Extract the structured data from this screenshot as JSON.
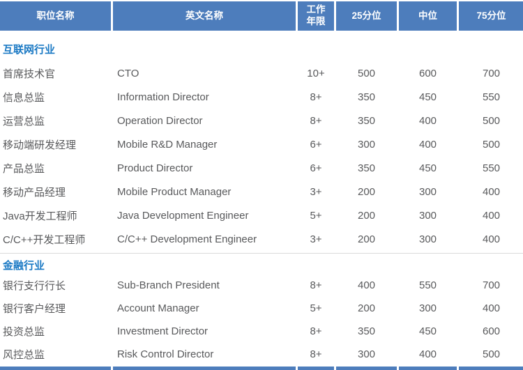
{
  "colors": {
    "header_bg": "#4d7dbc",
    "header_text": "#ffffff",
    "section_title_text": "#1a79c4",
    "body_text": "#58595b",
    "divider": "#d9d9d9"
  },
  "table": {
    "columns": [
      {
        "label": "职位名称"
      },
      {
        "label": "英文名称"
      },
      {
        "label": "工作\n年限"
      },
      {
        "label": "25分位"
      },
      {
        "label": "中位"
      },
      {
        "label": "75分位"
      }
    ],
    "sections": [
      {
        "title": "互联网行业",
        "rows": [
          [
            "首席技术官",
            "CTO",
            "10+",
            "500",
            "600",
            "700"
          ],
          [
            "信息总监",
            "Information Director",
            "8+",
            "350",
            "450",
            "550"
          ],
          [
            "运营总监",
            "Operation Director",
            "8+",
            "350",
            "400",
            "500"
          ],
          [
            "移动端研发经理",
            "Mobile R&D Manager",
            "6+",
            "300",
            "400",
            "500"
          ],
          [
            "产品总监",
            "Product Director",
            "6+",
            "350",
            "450",
            "550"
          ],
          [
            "移动产品经理",
            "Mobile Product Manager",
            "3+",
            "200",
            "300",
            "400"
          ],
          [
            "Java开发工程师",
            "Java Development Engineer",
            "5+",
            "200",
            "300",
            "400"
          ],
          [
            "C/C++开发工程师",
            "C/C++ Development Engineer",
            "3+",
            "200",
            "300",
            "400"
          ]
        ]
      },
      {
        "title": "金融行业",
        "rows": [
          [
            "银行支行行长",
            "Sub-Branch President",
            "8+",
            "400",
            "550",
            "700"
          ],
          [
            "银行客户经理",
            "Account Manager",
            "5+",
            "200",
            "300",
            "400"
          ],
          [
            "投资总监",
            "Investment Director",
            "8+",
            "350",
            "450",
            "600"
          ],
          [
            "风控总监",
            "Risk Control Director",
            "8+",
            "300",
            "400",
            "500"
          ]
        ]
      }
    ]
  }
}
